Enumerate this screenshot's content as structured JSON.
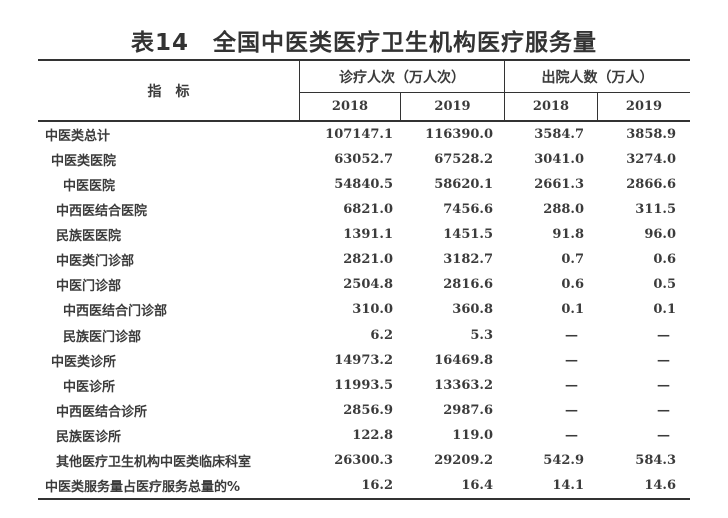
{
  "title": "表14　全国中医类医疗卫生机构医疗服务量",
  "table": {
    "header": {
      "indicator": "指　标",
      "groups": [
        {
          "label": "诊疗人次（万人次）",
          "years": [
            "2018",
            "2019"
          ]
        },
        {
          "label": "出院人数（万人）",
          "years": [
            "2018",
            "2019"
          ]
        }
      ]
    },
    "rows": [
      {
        "label": "中医类总计",
        "indent": 7,
        "values": [
          "107147.1",
          "116390.0",
          "3584.7",
          "3858.9"
        ]
      },
      {
        "label": "中医类医院",
        "indent": 13,
        "values": [
          "63052.7",
          "67528.2",
          "3041.0",
          "3274.0"
        ]
      },
      {
        "label": "中医医院",
        "indent": 25,
        "values": [
          "54840.5",
          "58620.1",
          "2661.3",
          "2866.6"
        ]
      },
      {
        "label": "中西医结合医院",
        "indent": 18,
        "values": [
          "6821.0",
          "7456.6",
          "288.0",
          "311.5"
        ]
      },
      {
        "label": "民族医医院",
        "indent": 18,
        "values": [
          "1391.1",
          "1451.5",
          "91.8",
          "96.0"
        ]
      },
      {
        "label": "中医类门诊部",
        "indent": 18,
        "values": [
          "2821.0",
          "3182.7",
          "0.7",
          "0.6"
        ]
      },
      {
        "label": "中医门诊部",
        "indent": 18,
        "values": [
          "2504.8",
          "2816.6",
          "0.6",
          "0.5"
        ]
      },
      {
        "label": "中西医结合门诊部",
        "indent": 25,
        "values": [
          "310.0",
          "360.8",
          "0.1",
          "0.1"
        ]
      },
      {
        "label": "民族医门诊部",
        "indent": 25,
        "values": [
          "6.2",
          "5.3",
          "—",
          "—"
        ]
      },
      {
        "label": "中医类诊所",
        "indent": 13,
        "values": [
          "14973.2",
          "16469.8",
          "—",
          "—"
        ]
      },
      {
        "label": "中医诊所",
        "indent": 25,
        "values": [
          "11993.5",
          "13363.2",
          "—",
          "—"
        ]
      },
      {
        "label": "中西医结合诊所",
        "indent": 18,
        "values": [
          "2856.9",
          "2987.6",
          "—",
          "—"
        ]
      },
      {
        "label": "民族医诊所",
        "indent": 18,
        "values": [
          "122.8",
          "119.0",
          "—",
          "—"
        ]
      },
      {
        "label": "其他医疗卫生机构中医类临床科室",
        "indent": 18,
        "values": [
          "26300.3",
          "29209.2",
          "542.9",
          "584.3"
        ]
      },
      {
        "label": "中医类服务量占医疗服务总量的%",
        "indent": 7,
        "values": [
          "16.2",
          "16.4",
          "14.1",
          "14.6"
        ]
      }
    ],
    "empty_value": "—"
  },
  "colors": {
    "text": "#3b3b3b",
    "title": "#333333",
    "border": "#333333",
    "background": "#ffffff"
  }
}
